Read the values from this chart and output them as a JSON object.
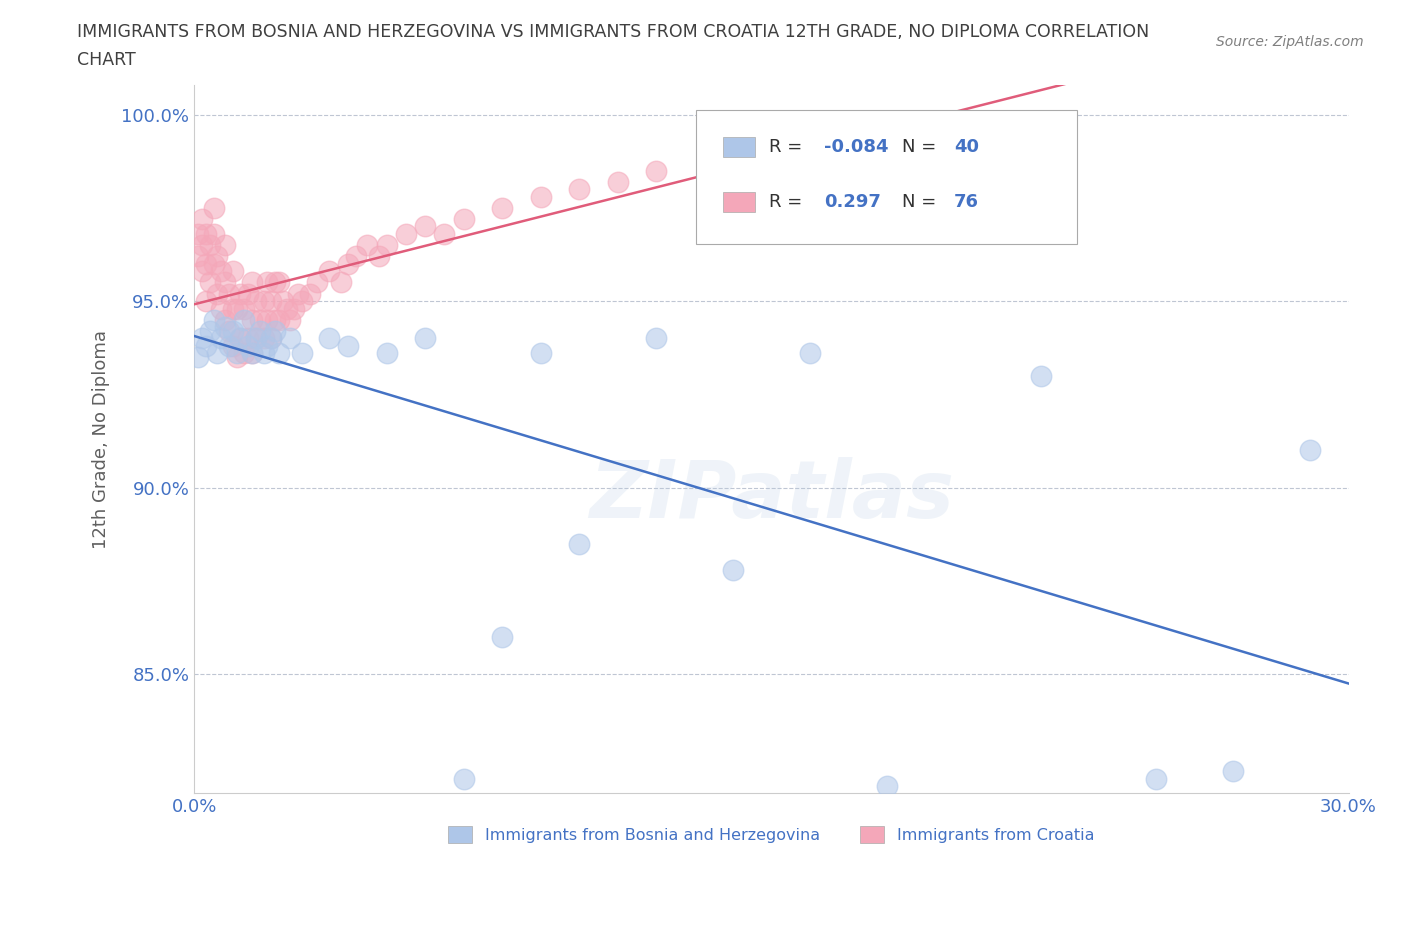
{
  "title_line1": "IMMIGRANTS FROM BOSNIA AND HERZEGOVINA VS IMMIGRANTS FROM CROATIA 12TH GRADE, NO DIPLOMA CORRELATION",
  "title_line2": "CHART",
  "source_text": "Source: ZipAtlas.com",
  "ylabel": "12th Grade, No Diploma",
  "watermark": "ZIPatlas",
  "xlim": [
    0.0,
    0.3
  ],
  "ylim": [
    0.818,
    1.008
  ],
  "xticks": [
    0.0,
    0.05,
    0.1,
    0.15,
    0.2,
    0.25,
    0.3
  ],
  "xticklabels": [
    "0.0%",
    "",
    "",
    "",
    "",
    "",
    "30.0%"
  ],
  "yticks": [
    0.85,
    0.9,
    0.95,
    1.0
  ],
  "yticklabels": [
    "85.0%",
    "90.0%",
    "95.0%",
    "100.0%"
  ],
  "bosnia_R": -0.084,
  "bosnia_N": 40,
  "croatia_R": 0.297,
  "croatia_N": 76,
  "bosnia_color": "#aec6e8",
  "croatia_color": "#f4a7b9",
  "bosnia_line_color": "#4472c4",
  "croatia_line_color": "#e05c7a",
  "legend_label_bosnia": "Immigrants from Bosnia and Herzegovina",
  "legend_label_croatia": "Immigrants from Croatia",
  "background_color": "#ffffff",
  "grid_color": "#b0b8c8",
  "title_color": "#404040",
  "source_color": "#808080",
  "axis_label_color": "#606060",
  "tick_label_color": "#4472c4",
  "bosnia_x": [
    0.001,
    0.002,
    0.003,
    0.004,
    0.005,
    0.006,
    0.007,
    0.008,
    0.009,
    0.01,
    0.011,
    0.012,
    0.013,
    0.014,
    0.015,
    0.016,
    0.017,
    0.018,
    0.019,
    0.02,
    0.021,
    0.022,
    0.025,
    0.028,
    0.035,
    0.04,
    0.05,
    0.06,
    0.07,
    0.08,
    0.09,
    0.1,
    0.12,
    0.14,
    0.16,
    0.18,
    0.22,
    0.25,
    0.27,
    0.29
  ],
  "bosnia_y": [
    0.935,
    0.94,
    0.938,
    0.942,
    0.945,
    0.936,
    0.94,
    0.943,
    0.938,
    0.942,
    0.936,
    0.94,
    0.945,
    0.938,
    0.936,
    0.94,
    0.942,
    0.936,
    0.938,
    0.94,
    0.942,
    0.936,
    0.94,
    0.936,
    0.94,
    0.938,
    0.936,
    0.94,
    0.822,
    0.86,
    0.936,
    0.885,
    0.94,
    0.878,
    0.936,
    0.82,
    0.93,
    0.822,
    0.824,
    0.91
  ],
  "croatia_x": [
    0.001,
    0.001,
    0.002,
    0.002,
    0.002,
    0.003,
    0.003,
    0.003,
    0.004,
    0.004,
    0.005,
    0.005,
    0.005,
    0.006,
    0.006,
    0.007,
    0.007,
    0.008,
    0.008,
    0.008,
    0.009,
    0.009,
    0.01,
    0.01,
    0.01,
    0.011,
    0.011,
    0.012,
    0.012,
    0.013,
    0.013,
    0.014,
    0.014,
    0.015,
    0.015,
    0.015,
    0.016,
    0.016,
    0.017,
    0.018,
    0.018,
    0.019,
    0.019,
    0.02,
    0.02,
    0.021,
    0.021,
    0.022,
    0.022,
    0.023,
    0.024,
    0.025,
    0.026,
    0.027,
    0.028,
    0.03,
    0.032,
    0.035,
    0.038,
    0.04,
    0.042,
    0.045,
    0.048,
    0.05,
    0.055,
    0.06,
    0.065,
    0.07,
    0.08,
    0.09,
    0.1,
    0.11,
    0.12,
    0.14,
    0.16,
    0.18
  ],
  "croatia_y": [
    0.962,
    0.968,
    0.958,
    0.965,
    0.972,
    0.95,
    0.96,
    0.968,
    0.955,
    0.965,
    0.96,
    0.968,
    0.975,
    0.952,
    0.962,
    0.948,
    0.958,
    0.945,
    0.955,
    0.965,
    0.942,
    0.952,
    0.938,
    0.948,
    0.958,
    0.935,
    0.948,
    0.94,
    0.952,
    0.936,
    0.948,
    0.94,
    0.952,
    0.936,
    0.945,
    0.955,
    0.94,
    0.95,
    0.945,
    0.95,
    0.94,
    0.945,
    0.955,
    0.95,
    0.94,
    0.945,
    0.955,
    0.945,
    0.955,
    0.95,
    0.948,
    0.945,
    0.948,
    0.952,
    0.95,
    0.952,
    0.955,
    0.958,
    0.955,
    0.96,
    0.962,
    0.965,
    0.962,
    0.965,
    0.968,
    0.97,
    0.968,
    0.972,
    0.975,
    0.978,
    0.98,
    0.982,
    0.985,
    0.988,
    0.99,
    0.995
  ]
}
